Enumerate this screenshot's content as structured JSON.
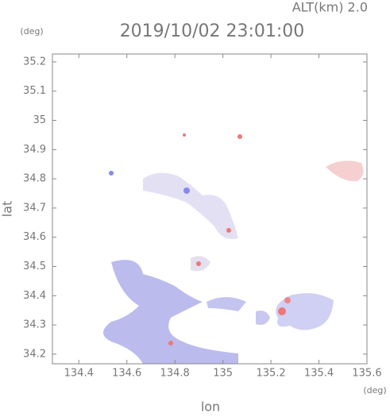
{
  "chart_data": {
    "type": "map",
    "title": "2019/10/02 23:01:00",
    "subtitle": "ALT(km) 2.0",
    "x_label": "lon",
    "y_label": "lat",
    "x_unit": "(deg)",
    "y_unit": "(deg)",
    "xlim": [
      134.29,
      135.6
    ],
    "ylim": [
      34.167,
      35.227
    ],
    "xticks": [
      134.4,
      134.6,
      134.8,
      135.0,
      135.2,
      135.4,
      135.6
    ],
    "yticks": [
      34.2,
      34.3,
      34.4,
      34.5,
      34.6,
      34.7,
      34.8,
      34.9,
      35.0,
      35.1,
      35.2
    ]
  }
}
